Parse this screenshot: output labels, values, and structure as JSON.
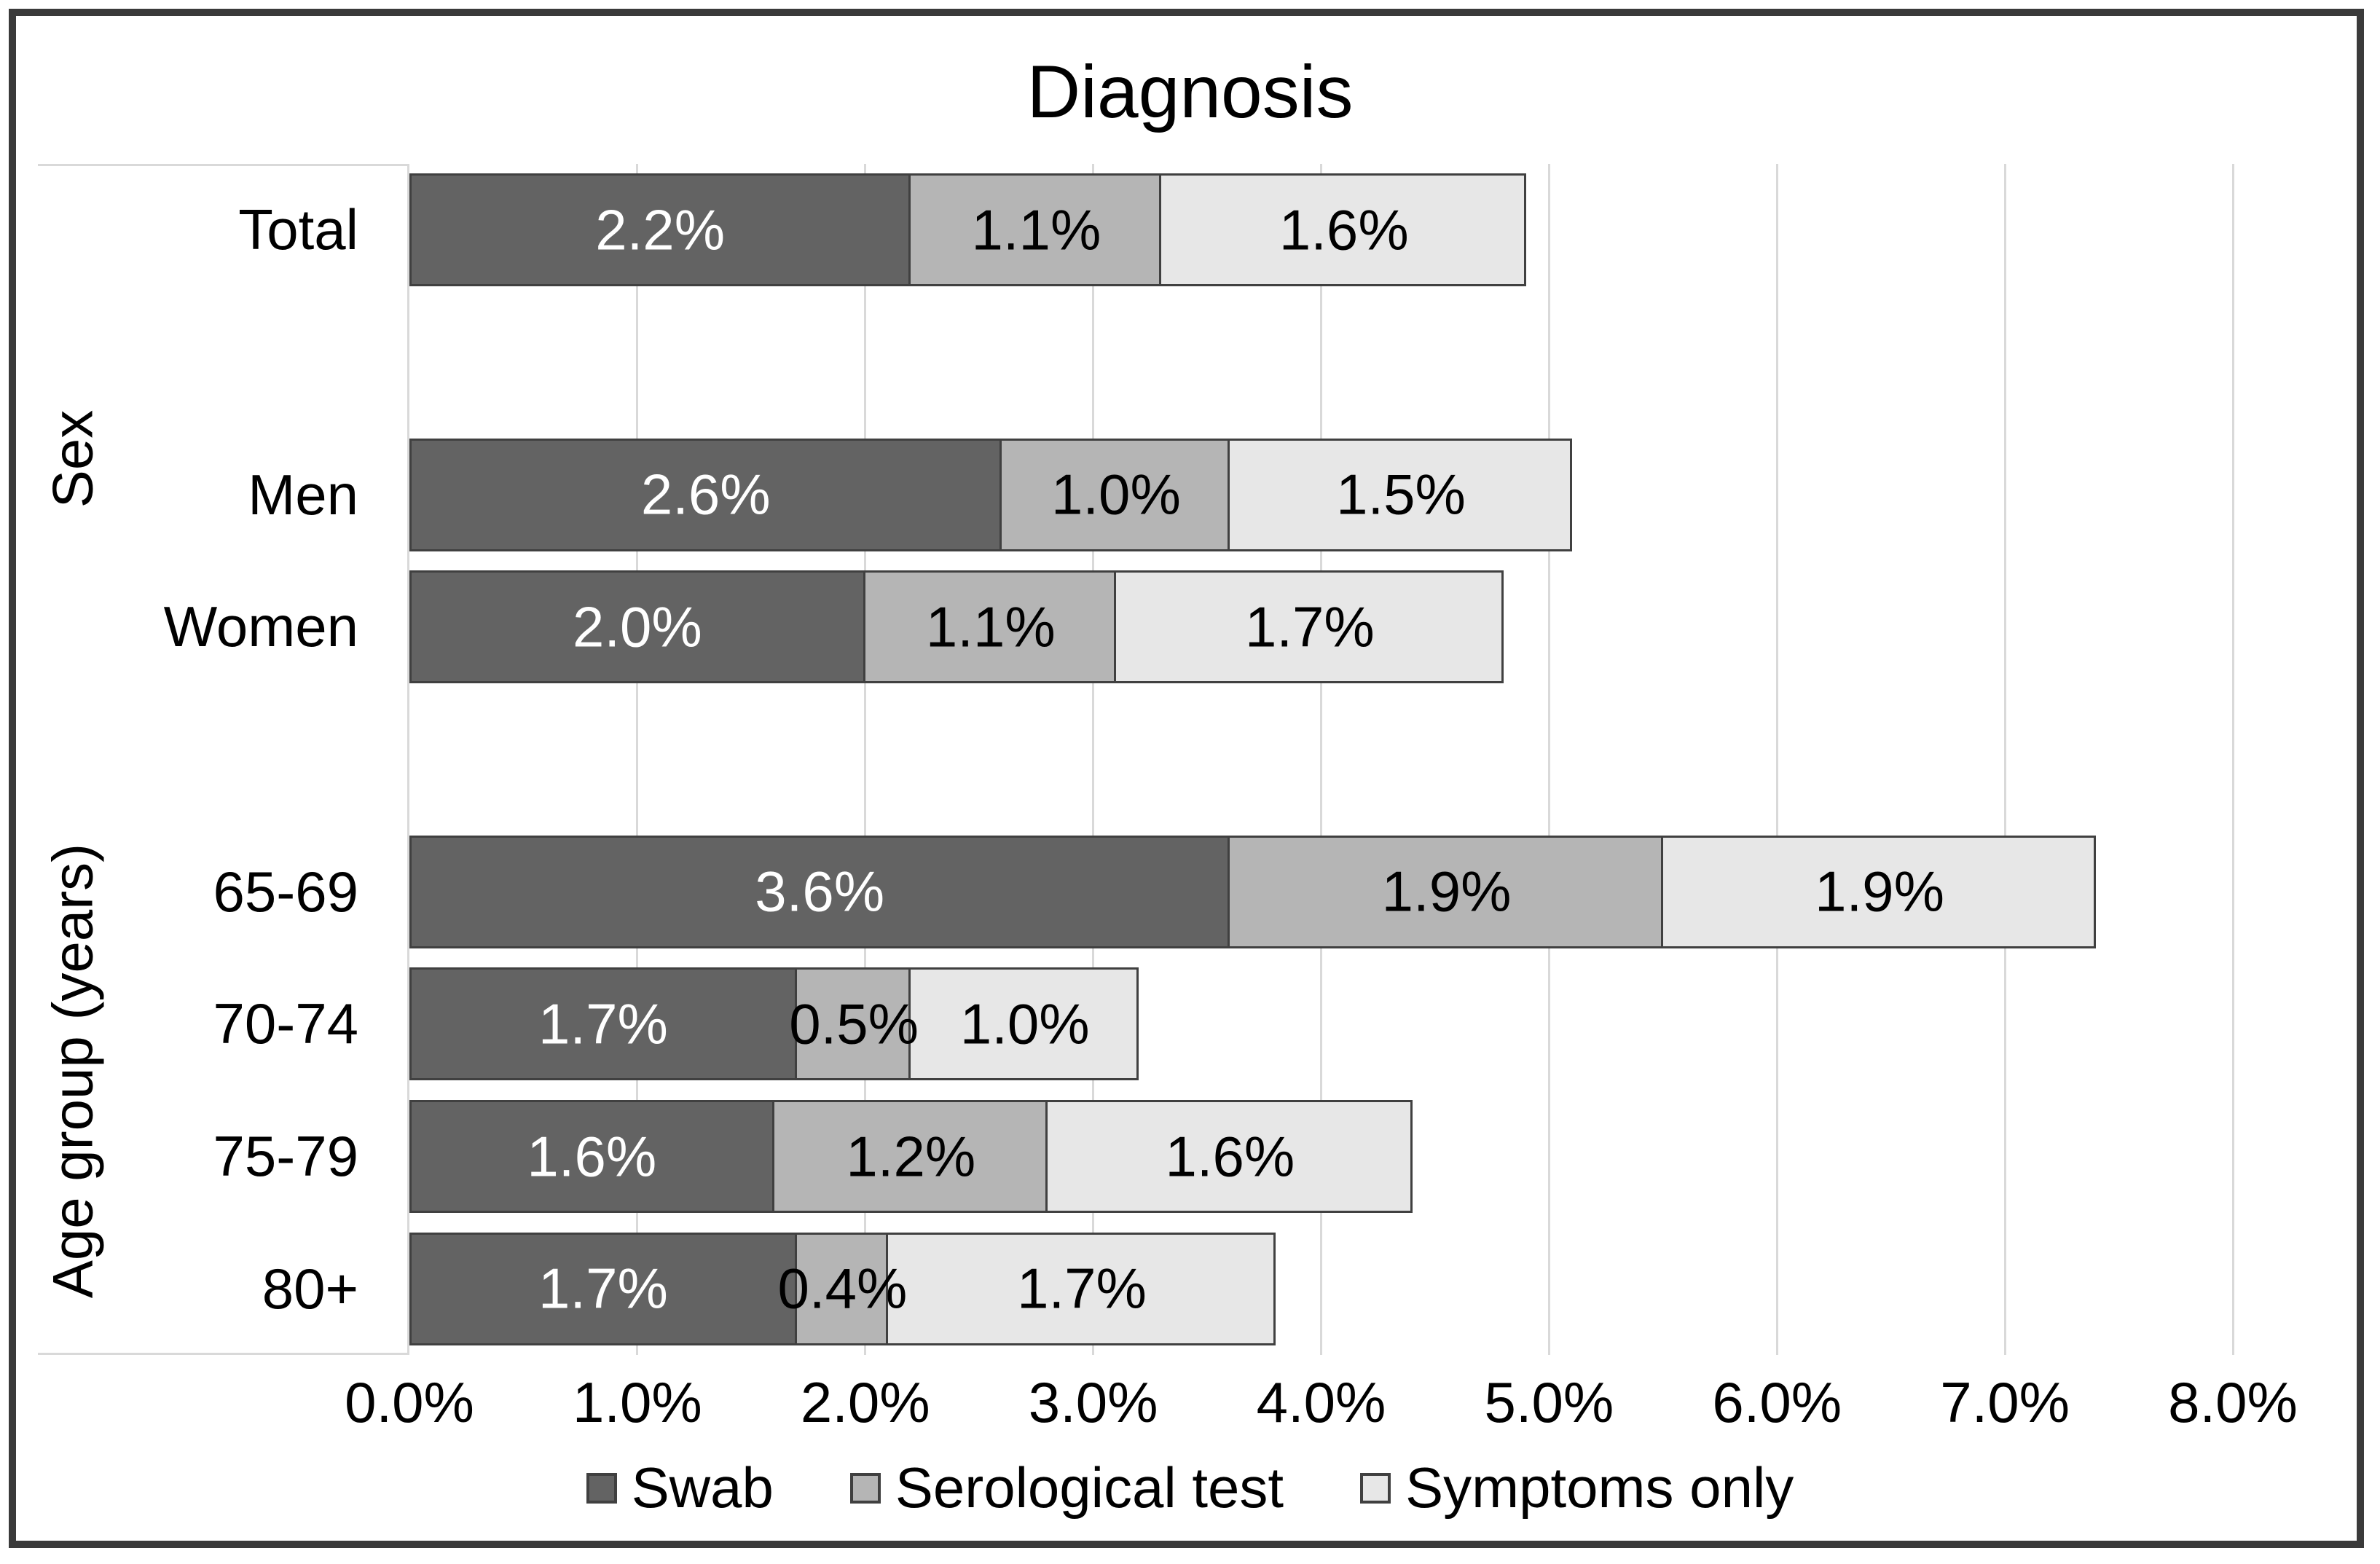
{
  "chart_data": {
    "type": "bar",
    "orientation": "horizontal",
    "stacked": true,
    "title": "Diagnosis",
    "axis_groups": [
      {
        "label": "",
        "categories": [
          "Total"
        ]
      },
      {
        "label": "Sex",
        "categories": [
          "Men",
          "Women"
        ]
      },
      {
        "label": "Age group (years)",
        "categories": [
          "65-69",
          "70-74",
          "75-79",
          "80+"
        ]
      }
    ],
    "categories": [
      "Total",
      "Men",
      "Women",
      "65-69",
      "70-74",
      "75-79",
      "80+"
    ],
    "series": [
      {
        "name": "Swab",
        "color": "#636363",
        "label_color": "#ffffff",
        "values": [
          2.2,
          2.6,
          2.0,
          3.6,
          1.7,
          1.6,
          1.7
        ],
        "labels": [
          "2.2%",
          "2.6%",
          "2.0%",
          "3.6%",
          "1.7%",
          "1.6%",
          "1.7%"
        ]
      },
      {
        "name": "Serological test",
        "color": "#b5b5b5",
        "label_color": "#000000",
        "values": [
          1.1,
          1.0,
          1.1,
          1.9,
          0.5,
          1.2,
          0.4
        ],
        "labels": [
          "1.1%",
          "1.0%",
          "1.1%",
          "1.9%",
          "0.5%",
          "1.2%",
          "0.4%"
        ]
      },
      {
        "name": "Symptoms only",
        "color": "#e7e7e7",
        "label_color": "#000000",
        "values": [
          1.6,
          1.5,
          1.7,
          1.9,
          1.0,
          1.6,
          1.7
        ],
        "labels": [
          "1.6%",
          "1.5%",
          "1.7%",
          "1.9%",
          "1.0%",
          "1.6%",
          "1.7%"
        ]
      }
    ],
    "x_axis": {
      "min": 0,
      "max": 8,
      "tick_labels": [
        "0.0%",
        "1.0%",
        "2.0%",
        "3.0%",
        "4.0%",
        "5.0%",
        "6.0%",
        "7.0%",
        "8.0%"
      ],
      "grid": true
    },
    "legend": {
      "position": "bottom",
      "entries": [
        "Swab",
        "Serological test",
        "Symptoms only"
      ]
    },
    "colors": {
      "segment_border": "#404040",
      "gridline": "#d9d9d9",
      "axis_border": "#d9d9d9",
      "frame": "#3a3a3a",
      "background": "#ffffff",
      "text": "#000000"
    }
  }
}
